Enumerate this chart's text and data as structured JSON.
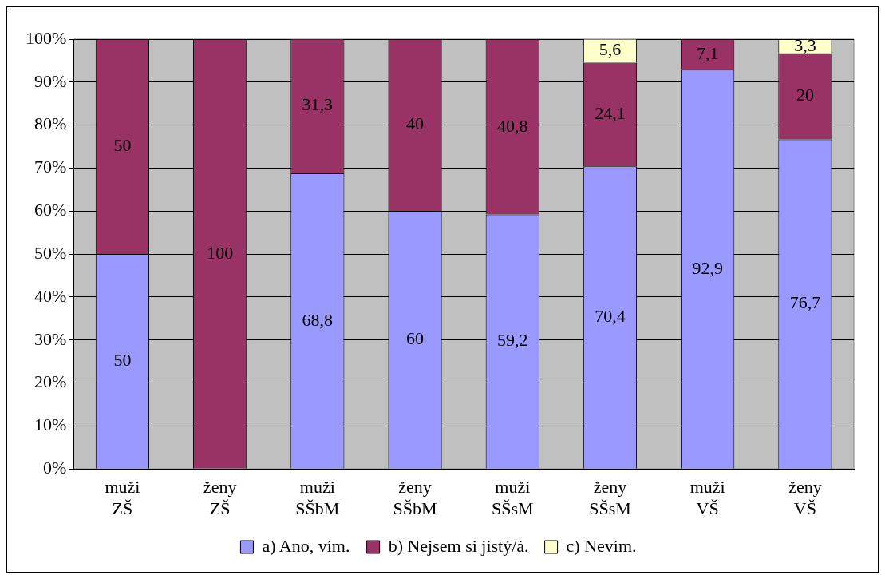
{
  "chart_data": {
    "type": "bar",
    "stacked": true,
    "categories": [
      "muži ZŠ",
      "ženy ZŠ",
      "muži SŠbM",
      "ženy SŠbM",
      "muži SŠsM",
      "ženy SŠsM",
      "muži VŠ",
      "ženy VŠ"
    ],
    "series": [
      {
        "name": "a) Ano, vím.",
        "color": "#9999ff",
        "values": [
          50,
          null,
          68.8,
          60,
          59.2,
          70.4,
          92.9,
          76.7
        ],
        "value_labels": [
          "50",
          null,
          "68,8",
          "60",
          "59,2",
          "70,4",
          "92,9",
          "76,7"
        ]
      },
      {
        "name": "b) Nejsem si jistý/á.",
        "color": "#993366",
        "values": [
          50,
          100,
          31.3,
          40,
          40.8,
          24.1,
          7.1,
          20
        ],
        "value_labels": [
          "50",
          "100",
          "31,3",
          "40",
          "40,8",
          "24,1",
          "7,1",
          "20"
        ]
      },
      {
        "name": "c) Nevím.",
        "color": "#ffffcc",
        "values": [
          null,
          null,
          null,
          null,
          null,
          5.6,
          null,
          3.3
        ],
        "value_labels": [
          null,
          null,
          null,
          null,
          null,
          "5,6",
          null,
          "3,3"
        ]
      }
    ],
    "ylim": [
      0,
      100
    ],
    "yticks": [
      {
        "value": 0,
        "label": "0%"
      },
      {
        "value": 10,
        "label": "10%"
      },
      {
        "value": 20,
        "label": "20%"
      },
      {
        "value": 30,
        "label": "30%"
      },
      {
        "value": 40,
        "label": "40%"
      },
      {
        "value": 50,
        "label": "50%"
      },
      {
        "value": 60,
        "label": "60%"
      },
      {
        "value": 70,
        "label": "70%"
      },
      {
        "value": 80,
        "label": "80%"
      },
      {
        "value": 90,
        "label": "90%"
      },
      {
        "value": 100,
        "label": "100%"
      }
    ],
    "grid": "y",
    "legend": "bottom"
  }
}
